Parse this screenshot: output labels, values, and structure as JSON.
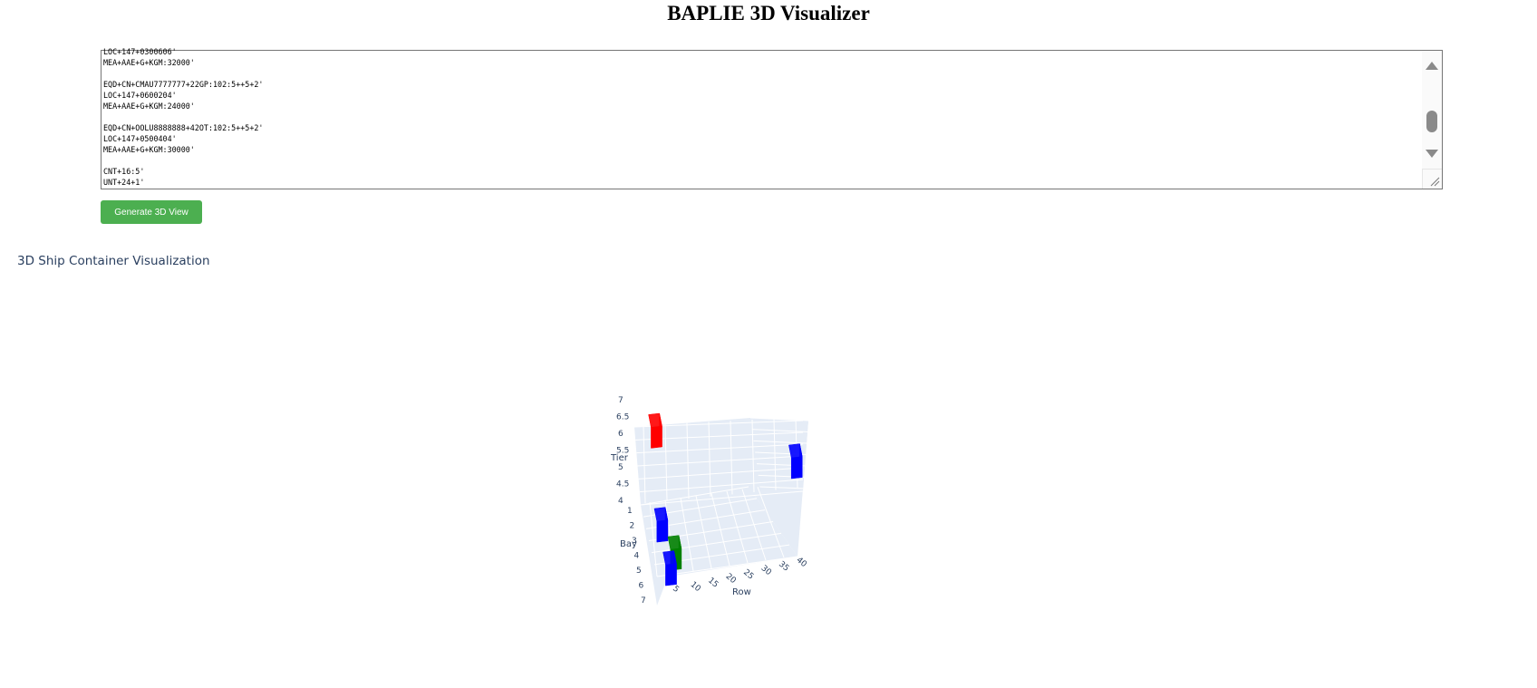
{
  "header": {
    "title": "BAPLIE 3D Visualizer"
  },
  "editor": {
    "lines": [
      "LOC+147+0300606'",
      "MEA+AAE+G+KGM:32000'",
      "",
      "EQD+CN+CMAU7777777+22GP:102:5++5+2'",
      "LOC+147+0600204'",
      "MEA+AAE+G+KGM:24000'",
      "",
      "EQD+CN+OOLU8888888+42OT:102:5++5+2'",
      "LOC+147+0500404'",
      "MEA+AAE+G+KGM:30000'",
      "",
      "CNT+16:5'",
      "UNT+24+1'"
    ]
  },
  "generate_button": {
    "label": "Generate 3D View"
  },
  "visualization": {
    "title": "3D Ship Container Visualization"
  },
  "chart_data": {
    "type": "scatter3d",
    "axes": {
      "x": {
        "label": "Row",
        "ticks": [
          "5",
          "10",
          "15",
          "20",
          "25",
          "30",
          "35",
          "40"
        ]
      },
      "y": {
        "label": "Bay",
        "ticks": [
          "1",
          "2",
          "3",
          "4",
          "5",
          "6",
          "7"
        ]
      },
      "z": {
        "label": "Tier",
        "ticks": [
          "4",
          "4.5",
          "5",
          "5.5",
          "6",
          "6.5",
          "7"
        ]
      }
    },
    "containers": [
      {
        "color": "#ff0000",
        "row": 2,
        "bay": 1,
        "tier": 6.5
      },
      {
        "color": "#0000ff",
        "row": 38,
        "bay": 1,
        "tier": 4.7
      },
      {
        "color": "#0000ff",
        "row": 2,
        "bay": 3,
        "tier": 4
      },
      {
        "color": "#008000",
        "row": 4,
        "bay": 5,
        "tier": 4
      },
      {
        "color": "#0000ff",
        "row": 2,
        "bay": 6,
        "tier": 4
      }
    ],
    "colors": {
      "red": "#ff0000",
      "blue": "#0000ff",
      "green": "#008000",
      "background": "#e5ecf6",
      "grid": "#ffffff"
    }
  }
}
